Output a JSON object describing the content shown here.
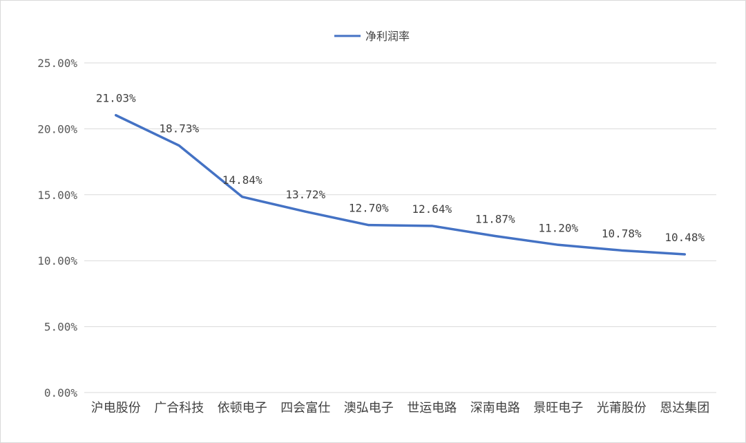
{
  "chart_data": {
    "type": "line",
    "title": "",
    "xlabel": "",
    "ylabel": "",
    "categories": [
      "沪电股份",
      "广合科技",
      "依顿电子",
      "四会富仕",
      "澳弘电子",
      "世运电路",
      "深南电路",
      "景旺电子",
      "光莆股份",
      "恩达集团"
    ],
    "series": [
      {
        "name": "净利润率",
        "values": [
          21.03,
          18.73,
          14.84,
          13.72,
          12.7,
          12.64,
          11.87,
          11.2,
          10.78,
          10.48
        ],
        "labels": [
          "21.03%",
          "18.73%",
          "14.84%",
          "13.72%",
          "12.70%",
          "12.64%",
          "11.87%",
          "11.20%",
          "10.78%",
          "10.48%"
        ],
        "color": "#4472c4"
      }
    ],
    "ylim": [
      0,
      25
    ],
    "yticks": [
      0,
      5,
      10,
      15,
      20,
      25
    ],
    "ytick_labels": [
      "0.00%",
      "5.00%",
      "10.00%",
      "15.00%",
      "20.00%",
      "25.00%"
    ],
    "grid": true,
    "legend_position": "top-center"
  }
}
